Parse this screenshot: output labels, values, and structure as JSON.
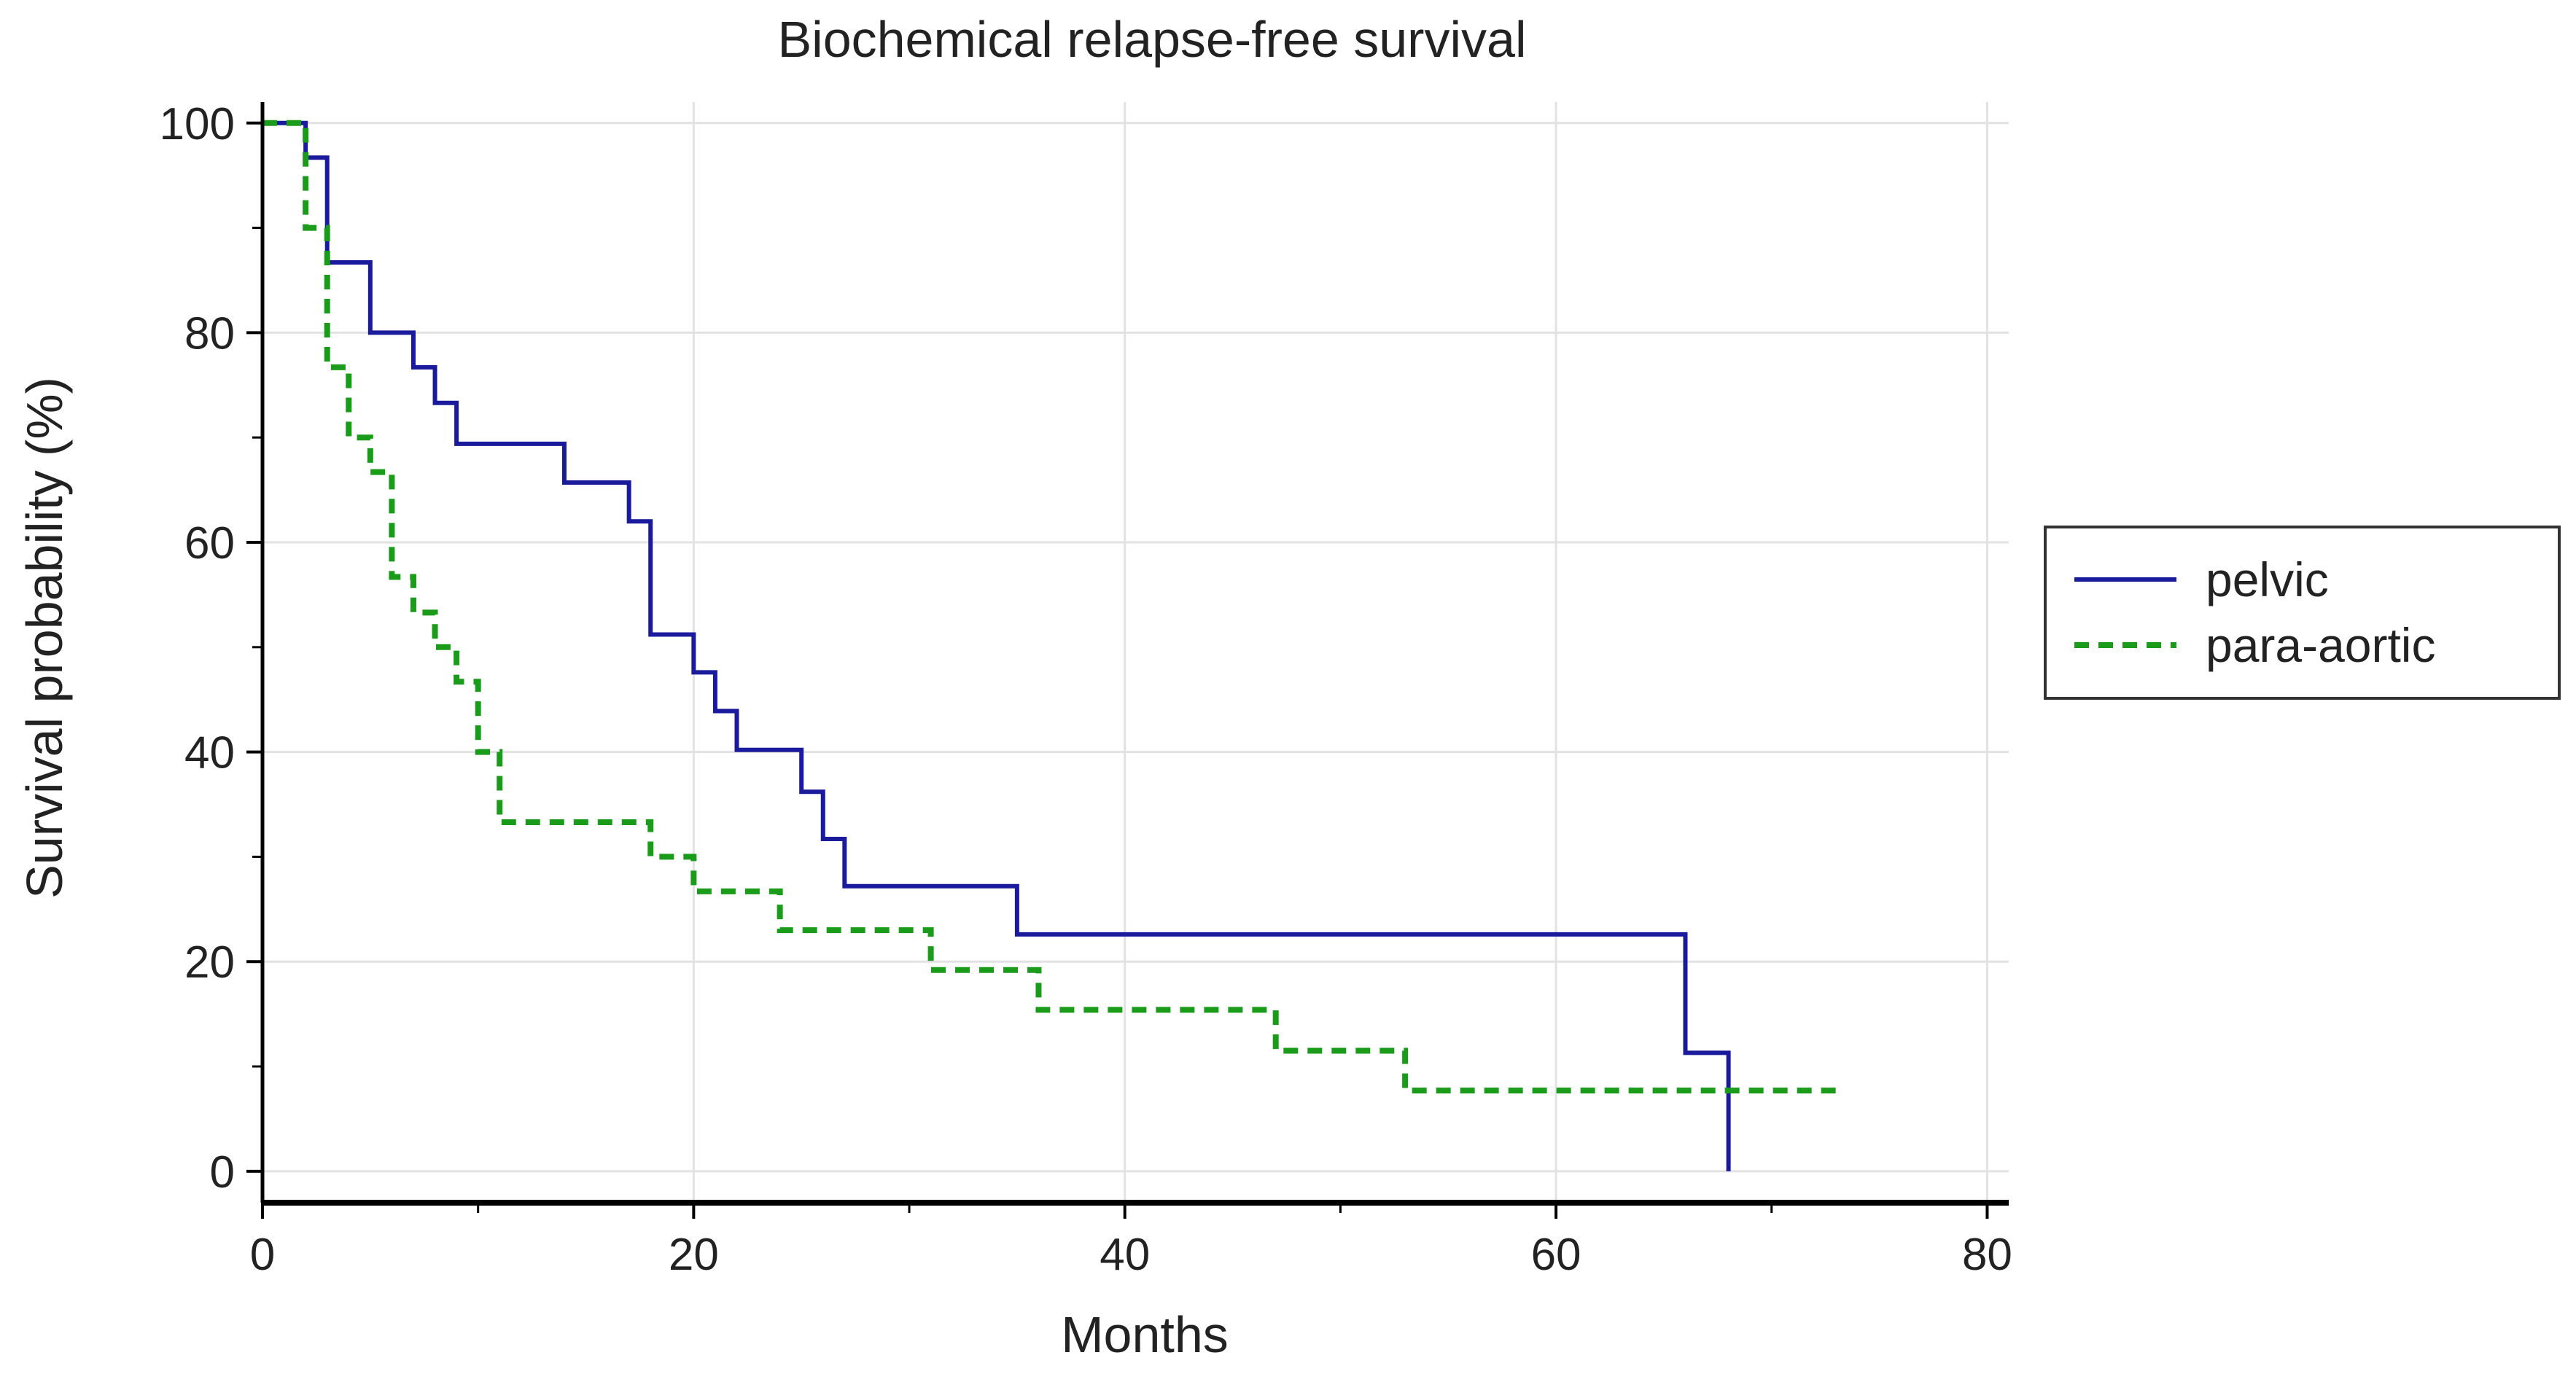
{
  "chart_data": {
    "type": "line",
    "subtype": "kaplan-meier step",
    "title": "Biochemical relapse-free survival",
    "xlabel": "Months",
    "ylabel": "Survival probability (%)",
    "xlim": [
      0,
      81
    ],
    "ylim": [
      -3,
      102
    ],
    "xticks": [
      0,
      20,
      40,
      60,
      80
    ],
    "xticklabels": [
      "0",
      "20",
      "40",
      "60",
      "80"
    ],
    "yticks": [
      0,
      20,
      40,
      60,
      80,
      100
    ],
    "yticklabels": [
      "0",
      "20",
      "40",
      "60",
      "80",
      "100"
    ],
    "grid": true,
    "legend": "right",
    "series": [
      {
        "name": "pelvic",
        "color": "#1a1a9c",
        "style": "solid",
        "x": [
          0,
          2,
          3,
          5,
          7,
          8,
          9,
          14,
          17,
          18,
          20,
          21,
          22,
          25,
          26,
          27,
          35,
          66,
          68,
          68
        ],
        "y": [
          100,
          96.7,
          86.7,
          80,
          76.7,
          73.3,
          69.4,
          65.7,
          62,
          51.2,
          47.6,
          43.9,
          40.2,
          36.2,
          31.7,
          27.2,
          22.6,
          11.3,
          11.3,
          0
        ]
      },
      {
        "name": "para-aortic",
        "color": "#1a9c1a",
        "style": "dashed",
        "x": [
          0,
          2,
          3,
          4,
          5,
          6,
          7,
          8,
          9,
          10,
          11,
          18,
          20,
          24,
          31,
          36,
          47,
          53,
          73
        ],
        "y": [
          100,
          90,
          76.7,
          70,
          66.7,
          56.7,
          53.3,
          50,
          46.7,
          40,
          33.3,
          30,
          26.7,
          23,
          19.2,
          15.4,
          11.5,
          7.7,
          7.7
        ]
      }
    ]
  }
}
